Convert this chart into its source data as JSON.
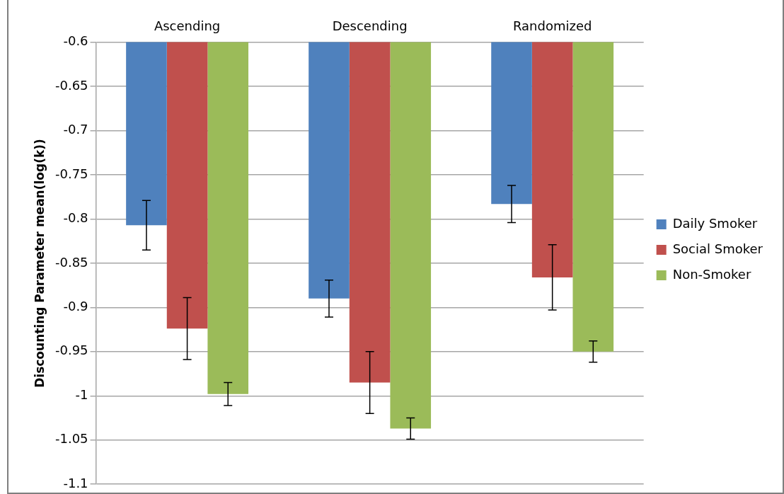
{
  "chart_data": {
    "type": "bar",
    "ylabel": "Discounting Parameter mean(log(k))",
    "categories": [
      "Ascending",
      "Descending",
      "Randomized"
    ],
    "series": [
      {
        "name": "Daily Smoker",
        "color": "#4f81bd",
        "values": [
          -0.807,
          -0.89,
          -0.783
        ],
        "errors": [
          0.028,
          0.021,
          0.021
        ]
      },
      {
        "name": "Social Smoker",
        "color": "#c0504d",
        "values": [
          -0.924,
          -0.985,
          -0.866
        ],
        "errors": [
          0.035,
          0.035,
          0.037
        ]
      },
      {
        "name": "Non-Smoker",
        "color": "#9bbb59",
        "values": [
          -0.998,
          -1.037,
          -0.95
        ],
        "errors": [
          0.013,
          0.012,
          0.012
        ]
      }
    ],
    "ylim": [
      -1.1,
      -0.6
    ],
    "yticks": [
      -1.1,
      -1.05,
      -1,
      -0.95,
      -0.9,
      -0.85,
      -0.8,
      -0.75,
      -0.7,
      -0.65,
      -0.6
    ],
    "grid": "y",
    "legend": "right"
  }
}
